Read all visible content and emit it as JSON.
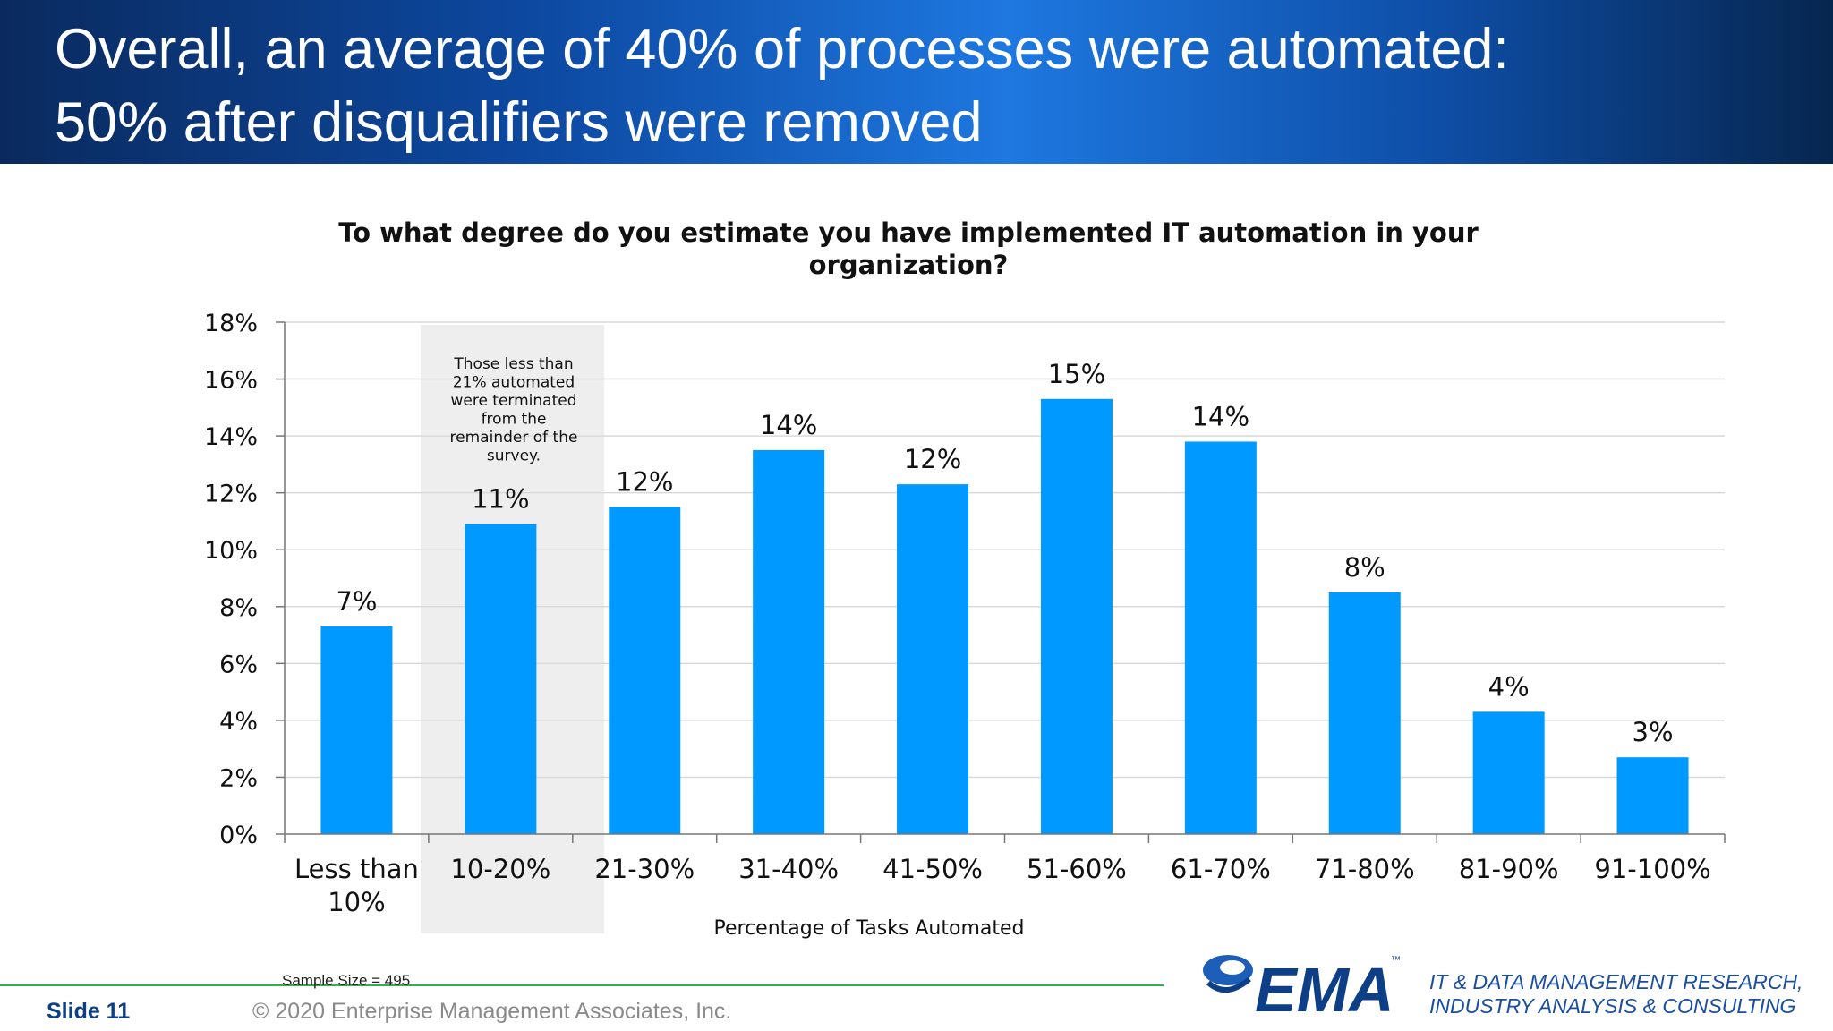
{
  "header": {
    "title_line1": "Overall, an average of 40% of processes were automated:",
    "title_line2": "50% after disqualifiers were removed"
  },
  "chart_data": {
    "type": "bar",
    "title_line1": "To what degree do you estimate you have implemented IT automation in your",
    "title_line2": "organization?",
    "xlabel": "Percentage of Tasks Automated",
    "ylabel": "",
    "ylim": [
      0,
      18
    ],
    "yticks": [
      "0%",
      "2%",
      "4%",
      "6%",
      "8%",
      "10%",
      "12%",
      "14%",
      "16%",
      "18%"
    ],
    "grid": true,
    "categories": [
      "Less than 10%",
      "10-20%",
      "21-30%",
      "31-40%",
      "41-50%",
      "51-60%",
      "61-70%",
      "71-80%",
      "81-90%",
      "91-100%"
    ],
    "values": [
      7.3,
      10.9,
      11.5,
      13.5,
      12.3,
      15.3,
      13.8,
      8.5,
      4.3,
      2.7
    ],
    "data_labels": [
      "7%",
      "11%",
      "12%",
      "14%",
      "12%",
      "15%",
      "14%",
      "8%",
      "4%",
      "3%"
    ],
    "bar_color": "#0099ff",
    "annotation": {
      "lines": [
        "Those less than",
        "21% automated",
        "were terminated",
        "from the",
        "remainder of the",
        "survey."
      ]
    }
  },
  "footer": {
    "sample_size": "Sample Size = 495",
    "slide_label": "Slide  11",
    "copyright": "© 2020 Enterprise Management Associates, Inc.",
    "logo_text": "EMA",
    "logo_tm": "™",
    "tagline_line1": "IT & DATA MANAGEMENT RESEARCH,",
    "tagline_line2": "INDUSTRY ANALYSIS & CONSULTING"
  }
}
